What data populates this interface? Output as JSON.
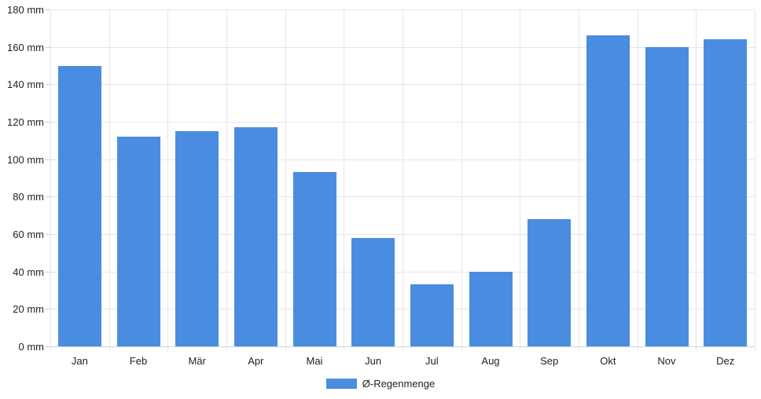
{
  "chart_data": {
    "type": "bar",
    "title": "",
    "xlabel": "",
    "ylabel": "",
    "unit": "mm",
    "categories": [
      "Jan",
      "Feb",
      "Mär",
      "Apr",
      "Mai",
      "Jun",
      "Jul",
      "Aug",
      "Sep",
      "Okt",
      "Nov",
      "Dez"
    ],
    "series": [
      {
        "name": "Ø-Regenmenge",
        "values": [
          150,
          112,
          115,
          117,
          93,
          58,
          33,
          40,
          68,
          166,
          160,
          164
        ]
      }
    ],
    "ylim": [
      0,
      180
    ],
    "ytick_step": 20,
    "ytick_labels": [
      "0 mm",
      "20 mm",
      "40 mm",
      "60 mm",
      "80 mm",
      "100 mm",
      "120 mm",
      "140 mm",
      "160 mm",
      "180 mm"
    ],
    "grid": true,
    "legend_position": "bottom"
  },
  "legend": {
    "label": "Ø-Regenmenge"
  },
  "colors": {
    "bar": "#4a8ce0",
    "grid": "#e6e6e6",
    "axis_line": "#d4d4d4",
    "tick": "#cccccc",
    "text": "#222222",
    "background": "#ffffff"
  }
}
